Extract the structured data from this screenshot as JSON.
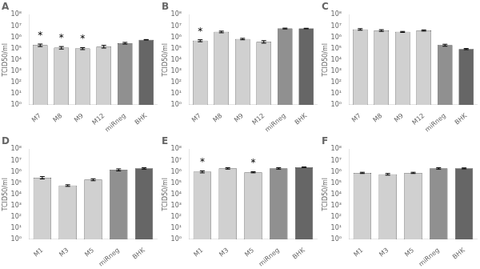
{
  "chart_data": [
    {
      "type": "bar",
      "title": "A",
      "ylabel": "TCID50/ml",
      "log": "y",
      "grid": false,
      "categories": [
        "M7",
        "M8",
        "M9",
        "M12",
        "miRneg",
        "BHK"
      ],
      "values": [
        200000,
        120000,
        100000,
        150000,
        300000,
        600000
      ],
      "errors": [
        50000,
        30000,
        20000,
        40000,
        50000,
        30000
      ],
      "colors": [
        "#d0d0d0",
        "#d0d0d0",
        "#d0d0d0",
        "#d0d0d0",
        "#909090",
        "#666666"
      ],
      "annotations": [
        {
          "category": "M7",
          "text": "*"
        },
        {
          "category": "M8",
          "text": "*"
        },
        {
          "category": "M9",
          "text": "*"
        }
      ],
      "ylim": [
        1,
        100000000
      ],
      "yticks": [
        {
          "value": 1,
          "label": "10⁰"
        },
        {
          "value": 10,
          "label": "10¹"
        },
        {
          "value": 100,
          "label": "10²"
        },
        {
          "value": 1000,
          "label": "10³"
        },
        {
          "value": 10000,
          "label": "10⁴"
        },
        {
          "value": 100000,
          "label": "10⁵"
        },
        {
          "value": 1000000,
          "label": "10⁶"
        },
        {
          "value": 10000000,
          "label": "10⁷"
        },
        {
          "value": 100000000,
          "label": "10⁸"
        }
      ]
    },
    {
      "type": "bar",
      "title": "B",
      "ylabel": "TCID50/ml",
      "log": "y",
      "grid": false,
      "categories": [
        "M7",
        "M8",
        "M9",
        "M12",
        "miRneg",
        "BHK"
      ],
      "values": [
        500000,
        3000000,
        700000,
        400000,
        6000000,
        6000000
      ],
      "errors": [
        100000,
        500000,
        100000,
        100000,
        500000,
        300000
      ],
      "colors": [
        "#d0d0d0",
        "#d0d0d0",
        "#d0d0d0",
        "#d0d0d0",
        "#909090",
        "#666666"
      ],
      "annotations": [
        {
          "category": "M7",
          "text": "*"
        }
      ],
      "ylim": [
        1,
        100000000
      ],
      "yticks": [
        {
          "value": 1,
          "label": "10⁰"
        },
        {
          "value": 10,
          "label": "10¹"
        },
        {
          "value": 100,
          "label": "10²"
        },
        {
          "value": 1000,
          "label": "10³"
        },
        {
          "value": 10000,
          "label": "10⁴"
        },
        {
          "value": 100000,
          "label": "10⁵"
        },
        {
          "value": 1000000,
          "label": "10⁶"
        },
        {
          "value": 10000000,
          "label": "10⁷"
        },
        {
          "value": 100000000,
          "label": "10⁸"
        }
      ]
    },
    {
      "type": "bar",
      "title": "C",
      "ylabel": "TCID50/ml",
      "log": "y",
      "grid": false,
      "categories": [
        "M7",
        "M8",
        "M9",
        "M12",
        "miRneg",
        "BHK"
      ],
      "values": [
        5000000,
        4000000,
        3000000,
        4000000,
        200000,
        90000
      ],
      "errors": [
        800000,
        700000,
        300000,
        500000,
        40000,
        10000
      ],
      "colors": [
        "#d0d0d0",
        "#d0d0d0",
        "#d0d0d0",
        "#d0d0d0",
        "#909090",
        "#666666"
      ],
      "ylim": [
        1,
        100000000
      ],
      "yticks": [
        {
          "value": 1,
          "label": "10⁰"
        },
        {
          "value": 10,
          "label": "10¹"
        },
        {
          "value": 100,
          "label": "10²"
        },
        {
          "value": 1000,
          "label": "10³"
        },
        {
          "value": 10000,
          "label": "10⁴"
        },
        {
          "value": 100000,
          "label": "10⁵"
        },
        {
          "value": 1000000,
          "label": "10⁶"
        },
        {
          "value": 10000000,
          "label": "10⁷"
        },
        {
          "value": 100000000,
          "label": "10⁸"
        }
      ]
    },
    {
      "type": "bar",
      "title": "D",
      "ylabel": "TCID50/ml",
      "log": "y",
      "grid": false,
      "categories": [
        "M1",
        "M3",
        "M5",
        "miRneg",
        "BHK"
      ],
      "values": [
        300000,
        60000,
        200000,
        1500000,
        2000000
      ],
      "errors": [
        70000,
        10000,
        40000,
        300000,
        300000
      ],
      "colors": [
        "#d0d0d0",
        "#d0d0d0",
        "#d0d0d0",
        "#909090",
        "#666666"
      ],
      "ylim": [
        1,
        100000000
      ],
      "yticks": [
        {
          "value": 1,
          "label": "10⁰"
        },
        {
          "value": 10,
          "label": "10¹"
        },
        {
          "value": 100,
          "label": "10²"
        },
        {
          "value": 1000,
          "label": "10³"
        },
        {
          "value": 10000,
          "label": "10⁴"
        },
        {
          "value": 100000,
          "label": "10⁵"
        },
        {
          "value": 1000000,
          "label": "10⁶"
        },
        {
          "value": 10000000,
          "label": "10⁷"
        },
        {
          "value": 100000000,
          "label": "10⁸"
        }
      ]
    },
    {
      "type": "bar",
      "title": "E",
      "ylabel": "TCID50/ml",
      "log": "y",
      "grid": false,
      "categories": [
        "M1",
        "M3",
        "M5",
        "miRneg",
        "BHK"
      ],
      "values": [
        1000000,
        2000000,
        900000,
        2000000,
        2500000
      ],
      "errors": [
        200000,
        300000,
        100000,
        300000,
        200000
      ],
      "colors": [
        "#d0d0d0",
        "#d0d0d0",
        "#d0d0d0",
        "#909090",
        "#666666"
      ],
      "annotations": [
        {
          "category": "M1",
          "text": "*"
        },
        {
          "category": "M5",
          "text": "*"
        }
      ],
      "ylim": [
        1,
        100000000
      ],
      "yticks": [
        {
          "value": 1,
          "label": "10⁰"
        },
        {
          "value": 10,
          "label": "10¹"
        },
        {
          "value": 100,
          "label": "10²"
        },
        {
          "value": 1000,
          "label": "10³"
        },
        {
          "value": 10000,
          "label": "10⁴"
        },
        {
          "value": 100000,
          "label": "10⁵"
        },
        {
          "value": 1000000,
          "label": "10⁶"
        },
        {
          "value": 10000000,
          "label": "10⁷"
        },
        {
          "value": 100000000,
          "label": "10⁸"
        }
      ]
    },
    {
      "type": "bar",
      "title": "F",
      "ylabel": "TCID50/ml",
      "log": "y",
      "grid": false,
      "categories": [
        "M1",
        "M3",
        "M5",
        "miRneg",
        "BHK"
      ],
      "values": [
        800000,
        600000,
        800000,
        2000000,
        2000000
      ],
      "errors": [
        100000,
        100000,
        100000,
        300000,
        200000
      ],
      "colors": [
        "#d0d0d0",
        "#d0d0d0",
        "#d0d0d0",
        "#909090",
        "#666666"
      ],
      "ylim": [
        1,
        100000000
      ],
      "yticks": [
        {
          "value": 1,
          "label": "10⁰"
        },
        {
          "value": 10,
          "label": "10¹"
        },
        {
          "value": 100,
          "label": "10²"
        },
        {
          "value": 1000,
          "label": "10³"
        },
        {
          "value": 10000,
          "label": "10⁴"
        },
        {
          "value": 100000,
          "label": "10⁵"
        },
        {
          "value": 1000000,
          "label": "10⁶"
        },
        {
          "value": 10000000,
          "label": "10⁷"
        },
        {
          "value": 100000000,
          "label": "10⁸"
        }
      ]
    }
  ]
}
